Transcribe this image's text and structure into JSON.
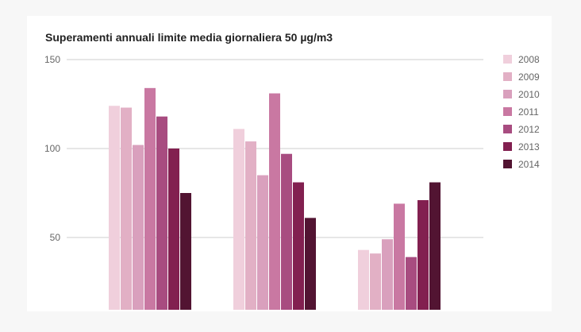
{
  "chart_data": {
    "type": "bar",
    "title": "Superamenti annuali limite media giornaliera 50 µg/m3",
    "xlabel": "",
    "ylabel": "",
    "categories": [
      "",
      "",
      ""
    ],
    "ylim": [
      10,
      150
    ],
    "yticks": [
      50,
      100,
      150
    ],
    "grid": true,
    "legend_position": "right",
    "series": [
      {
        "name": "2008",
        "color": "#f0cfdc",
        "values": [
          124,
          111,
          43
        ]
      },
      {
        "name": "2009",
        "color": "#e2b0c5",
        "values": [
          123,
          104,
          41
        ]
      },
      {
        "name": "2010",
        "color": "#d9a0bd",
        "values": [
          102,
          85,
          49
        ]
      },
      {
        "name": "2011",
        "color": "#c978a2",
        "values": [
          134,
          131,
          69
        ]
      },
      {
        "name": "2012",
        "color": "#a84c80",
        "values": [
          118,
          97,
          39
        ]
      },
      {
        "name": "2013",
        "color": "#822050",
        "values": [
          100,
          81,
          71
        ]
      },
      {
        "name": "2014",
        "color": "#521432",
        "values": [
          75,
          61,
          81
        ]
      }
    ]
  }
}
